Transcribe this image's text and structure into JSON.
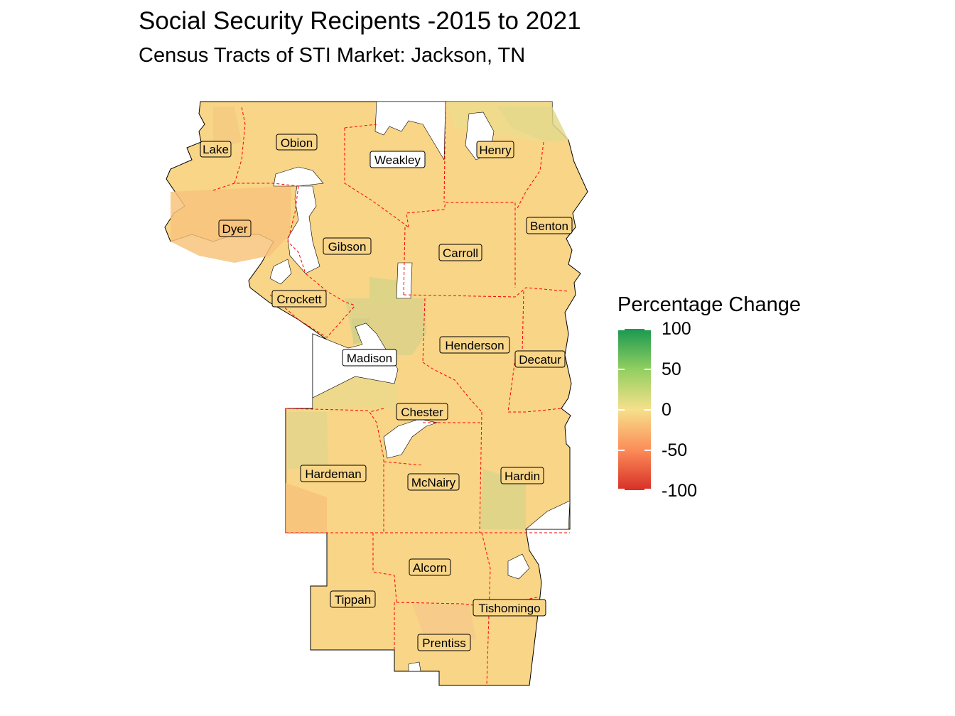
{
  "title": "Social Security Recipents -2015 to 2021",
  "subtitle": "Census Tracts of STI Market: Jackson, TN",
  "legend": {
    "title": "Percentage Change",
    "ticks": [
      "100",
      "50",
      "0",
      "-50",
      "-100"
    ],
    "scale": {
      "min": -100,
      "mid": 0,
      "max": 100
    },
    "colors": {
      "high": "#1a9850",
      "mid": "#f6e08b",
      "low": "#d73027"
    }
  },
  "boundary_color": "#ff0000",
  "counties": [
    {
      "name": "Lake"
    },
    {
      "name": "Obion"
    },
    {
      "name": "Weakley"
    },
    {
      "name": "Henry"
    },
    {
      "name": "Dyer"
    },
    {
      "name": "Gibson"
    },
    {
      "name": "Carroll"
    },
    {
      "name": "Benton"
    },
    {
      "name": "Crockett"
    },
    {
      "name": "Madison"
    },
    {
      "name": "Henderson"
    },
    {
      "name": "Decatur"
    },
    {
      "name": "Chester"
    },
    {
      "name": "Hardeman"
    },
    {
      "name": "McNairy"
    },
    {
      "name": "Hardin"
    },
    {
      "name": "Alcorn"
    },
    {
      "name": "Tippah"
    },
    {
      "name": "Tishomingo"
    },
    {
      "name": "Prentiss"
    }
  ]
}
